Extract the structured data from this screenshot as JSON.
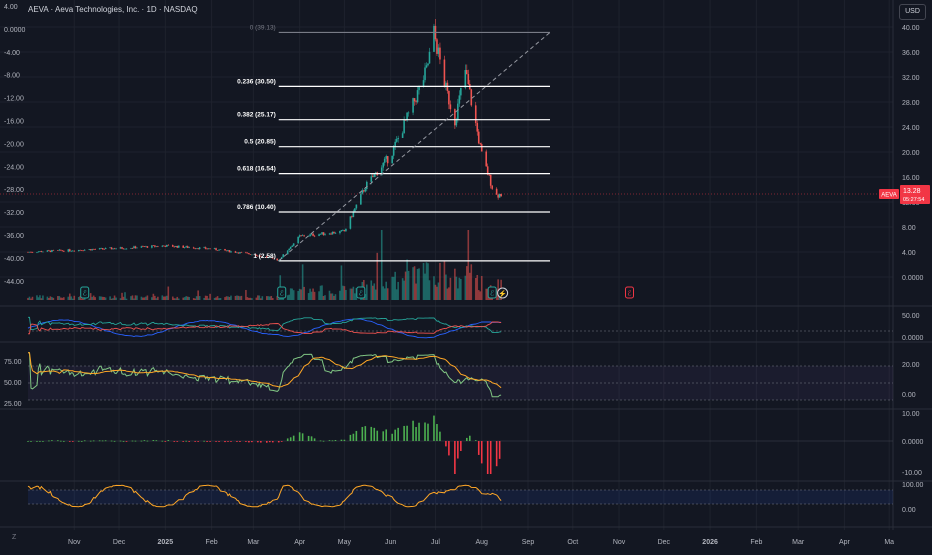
{
  "header": {
    "title": "AEVA · Aeva Technologies, Inc. · 1D · NASDAQ",
    "currency_button": "USD",
    "corner_label": "Z"
  },
  "price_badge": {
    "ticker": "AEVA",
    "price": "13.28",
    "countdown": "05:27:54",
    "color": "#f23645"
  },
  "chart_data": [
    {
      "type": "candlestick",
      "ticker": "AEVA",
      "interval": "1D",
      "exchange": "NASDAQ",
      "y_right_ticks": [
        "40.00",
        "36.00",
        "32.00",
        "28.00",
        "24.00",
        "20.00",
        "16.00",
        "12.00",
        "8.00",
        "4.00",
        "0.0000"
      ],
      "y_left_ticks": [
        "4.00",
        "0.0000",
        "-4.00",
        "-8.00",
        "-12.00",
        "-16.00",
        "-20.00",
        "-24.00",
        "-28.00",
        "-32.00",
        "-36.00",
        "-40.00",
        "-44.00"
      ],
      "ylim": [
        -2,
        41
      ],
      "fibonacci": {
        "levels": [
          {
            "ratio": 0,
            "price": 39.13,
            "label": "0 (39.13)",
            "color": "#787b86"
          },
          {
            "ratio": 0.236,
            "price": 30.5,
            "label": "0.236 (30.50)",
            "color": "#ffffff"
          },
          {
            "ratio": 0.382,
            "price": 25.17,
            "label": "0.382 (25.17)",
            "color": "#ffffff"
          },
          {
            "ratio": 0.5,
            "price": 20.85,
            "label": "0.5 (20.85)",
            "color": "#ffffff"
          },
          {
            "ratio": 0.618,
            "price": 16.54,
            "label": "0.618 (16.54)",
            "color": "#ffffff"
          },
          {
            "ratio": 0.786,
            "price": 10.4,
            "label": "0.786 (10.40)",
            "color": "#ffffff"
          },
          {
            "ratio": 1,
            "price": 2.58,
            "label": "1 (2.58)",
            "color": "#ffffff"
          }
        ],
        "trend_line": {
          "from": [
            "2025-03-18",
            2.58
          ],
          "to": [
            "2025-09-01",
            39.13
          ]
        }
      },
      "x_ticks": [
        "Nov",
        "Dec",
        "2025",
        "Feb",
        "Mar",
        "Apr",
        "May",
        "Jun",
        "Jul",
        "Aug",
        "Sep",
        "Oct",
        "Nov",
        "Dec",
        "2026",
        "Feb",
        "Mar",
        "Apr",
        "Ma"
      ],
      "price_points": [
        [
          "2024-10-01",
          4.0
        ],
        [
          "2024-11-01",
          4.3
        ],
        [
          "2024-12-01",
          4.6
        ],
        [
          "2025-01-01",
          5.0
        ],
        [
          "2025-02-01",
          4.5
        ],
        [
          "2025-03-01",
          3.6
        ],
        [
          "2025-03-18",
          2.7
        ],
        [
          "2025-04-01",
          6.5
        ],
        [
          "2025-04-15",
          6.9
        ],
        [
          "2025-05-01",
          7.3
        ],
        [
          "2025-05-15",
          14.5
        ],
        [
          "2025-06-01",
          19.5
        ],
        [
          "2025-06-15",
          27.0
        ],
        [
          "2025-06-25",
          33.0
        ],
        [
          "2025-06-30",
          39.1
        ],
        [
          "2025-07-08",
          30.0
        ],
        [
          "2025-07-14",
          25.0
        ],
        [
          "2025-07-21",
          33.0
        ],
        [
          "2025-08-01",
          19.5
        ],
        [
          "2025-08-10",
          13.0
        ],
        [
          "2025-08-14",
          13.28
        ]
      ]
    },
    {
      "type": "line",
      "pane": "indicator-1",
      "y_ticks": [
        "50.00",
        "0.0000"
      ]
    },
    {
      "type": "line",
      "pane": "rsi",
      "y_left_ticks": [
        "75.00",
        "50.00",
        "25.00"
      ],
      "y_right_ticks": [
        "20.00",
        "0.00"
      ]
    },
    {
      "type": "bar",
      "pane": "histogram",
      "y_ticks": [
        "10.00",
        "0.0000",
        "-10.00"
      ]
    },
    {
      "type": "line",
      "pane": "stochastic",
      "y_ticks": [
        "100.00",
        "0.00"
      ]
    }
  ],
  "colors": {
    "background": "#131722",
    "up": "#26a69a",
    "down": "#ef5350",
    "grid": "#1e222d",
    "text": "#b2b5be",
    "divider": "#2a2e39"
  }
}
